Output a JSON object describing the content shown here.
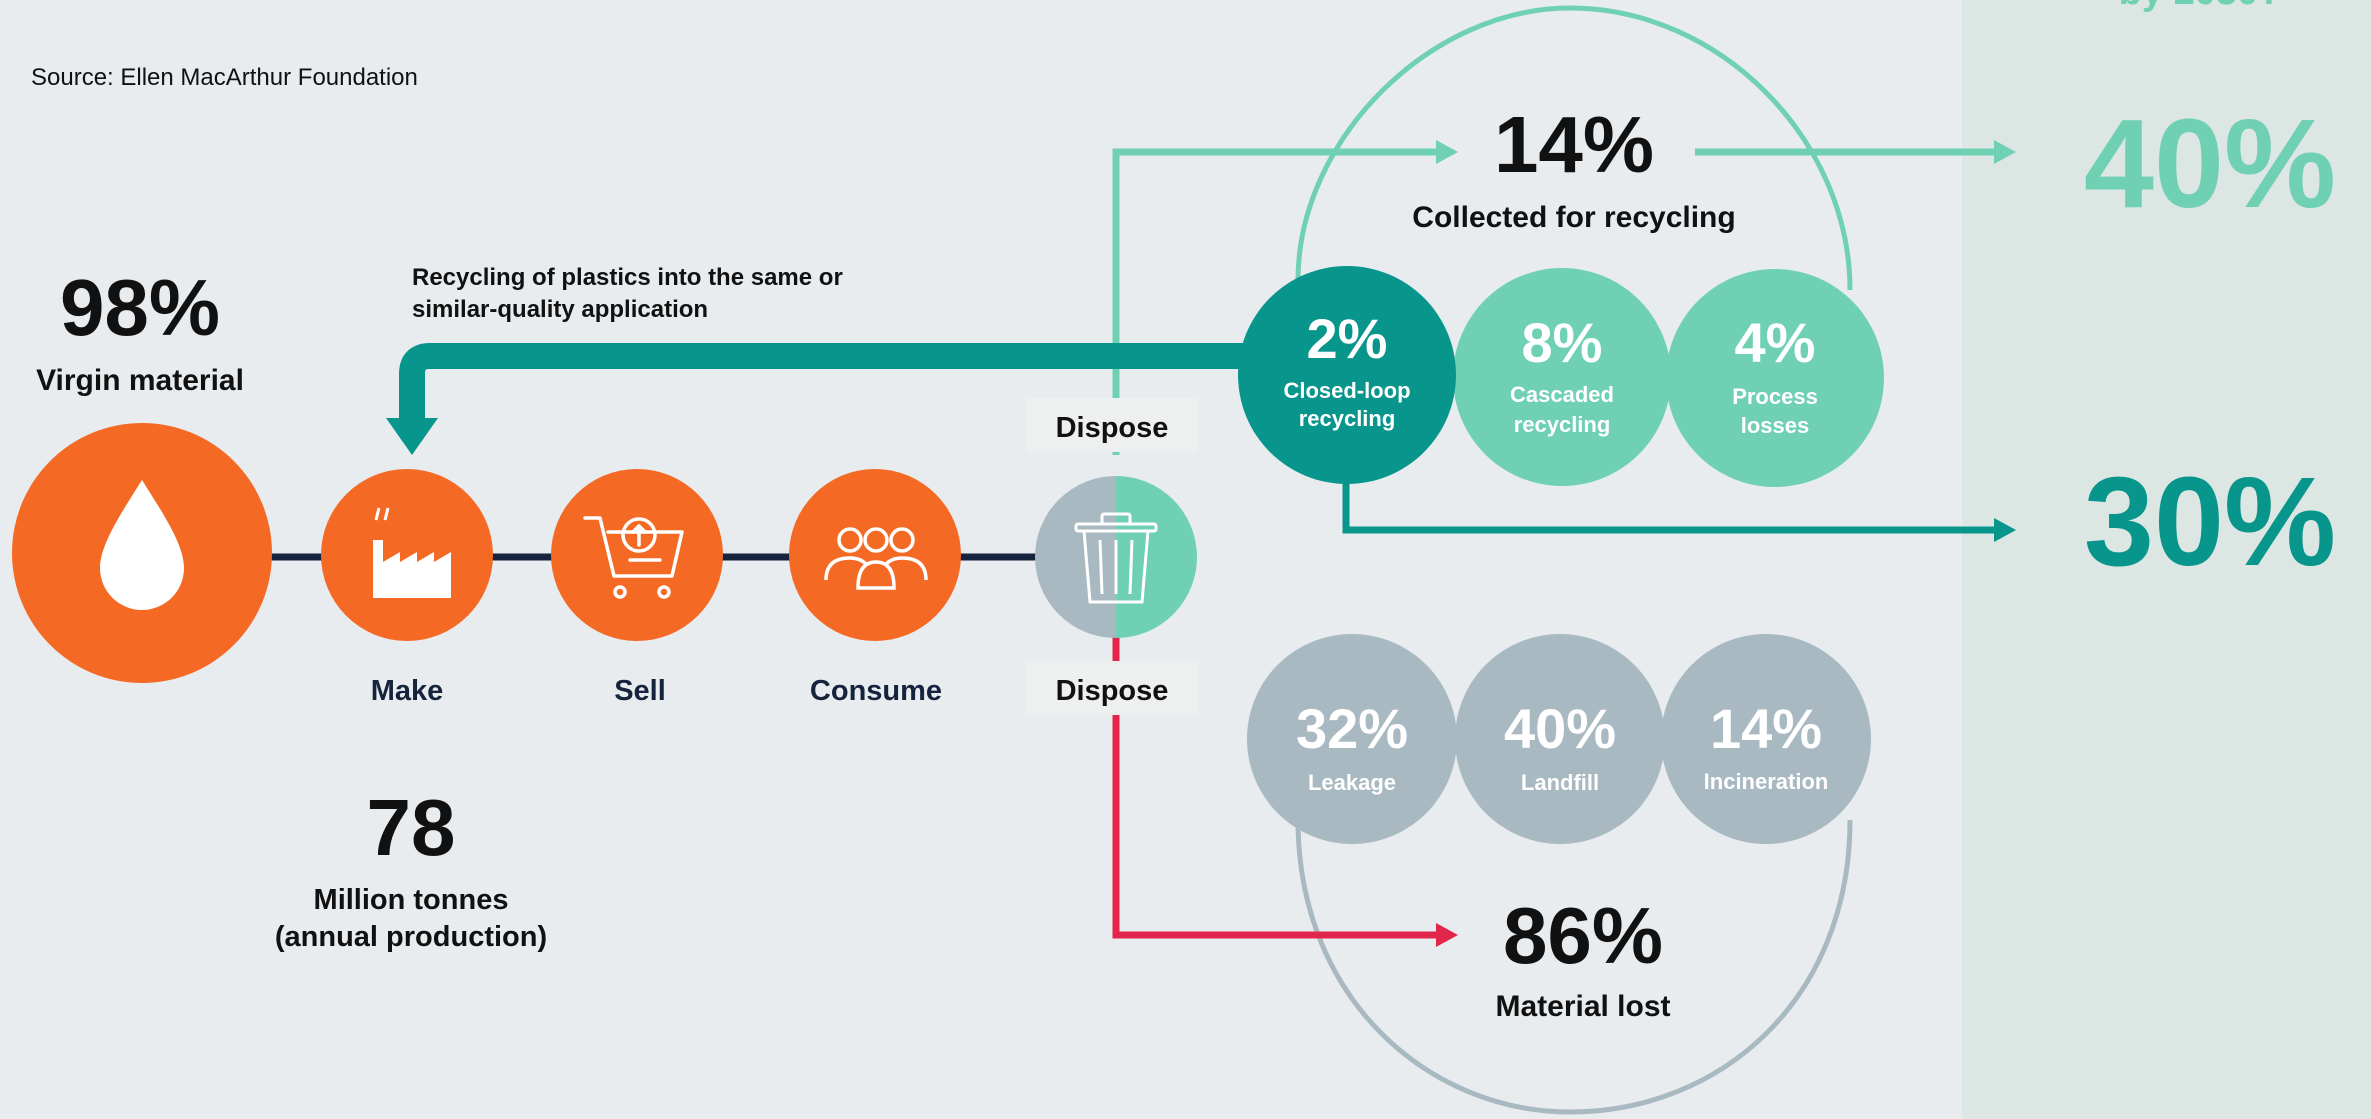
{
  "source": "Source: Ellen MacArthur Foundation",
  "top_right_partial": "by 2030?",
  "virgin": {
    "value": "98%",
    "label": "Virgin material"
  },
  "recycling_note": {
    "line1": "Recycling of plastics into the same or",
    "line2": "similar-quality application"
  },
  "flow": {
    "make": "Make",
    "sell": "Sell",
    "consume": "Consume",
    "dispose_top": "Dispose",
    "dispose_bottom": "Dispose"
  },
  "production": {
    "value": "78",
    "line1": "Million tonnes",
    "line2": "(annual production)"
  },
  "collected": {
    "value": "14%",
    "label": "Collected for recycling"
  },
  "recycle_circles": [
    {
      "value": "2%",
      "line1": "Closed-loop",
      "line2": "recycling"
    },
    {
      "value": "8%",
      "line1": "Cascaded",
      "line2": "recycling"
    },
    {
      "value": "4%",
      "line1": "Process",
      "line2": "losses"
    }
  ],
  "lost_circles": [
    {
      "value": "32%",
      "label": "Leakage"
    },
    {
      "value": "40%",
      "label": "Landfill"
    },
    {
      "value": "14%",
      "label": "Incineration"
    }
  ],
  "lost": {
    "value": "86%",
    "label": "Material lost"
  },
  "targets": {
    "collected": "40%",
    "closed_loop": "30%"
  },
  "icons": [
    "drop-icon",
    "factory-icon",
    "shopping-cart-icon",
    "people-icon",
    "trash-bin-icon"
  ],
  "colors": {
    "background": "#e8ecef",
    "right_panel": "#dce6e3",
    "orange": "#f46a24",
    "teal_dark": "#08968c",
    "teal_light": "#6fd0b4",
    "grey": "#a9b9c1",
    "navy": "#15233d",
    "red": "#e2264b"
  }
}
